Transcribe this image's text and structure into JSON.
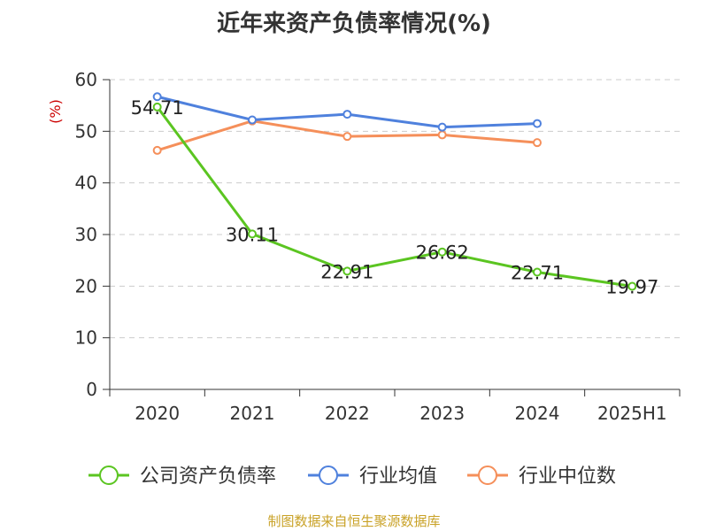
{
  "chart_data": {
    "type": "line",
    "title": "近年来资产负债率情况(%)",
    "ylabel": "(%)",
    "categories": [
      "2020",
      "2021",
      "2022",
      "2023",
      "2024",
      "2025H1"
    ],
    "ylim": [
      0,
      60
    ],
    "yticks": [
      0,
      10,
      20,
      30,
      40,
      50,
      60
    ],
    "grid": true,
    "legend_position": "bottom",
    "series": [
      {
        "name": "公司资产负债率",
        "color": "#5bc521",
        "values": [
          54.71,
          30.11,
          22.91,
          26.62,
          22.71,
          19.97
        ],
        "labels": [
          "54.71",
          "30.11",
          "22.91",
          "26.62",
          "22.71",
          "19.97"
        ]
      },
      {
        "name": "行业均值",
        "color": "#4f81dd",
        "values": [
          56.7,
          52.2,
          53.3,
          50.8,
          51.5,
          null
        ]
      },
      {
        "name": "行业中位数",
        "color": "#f58f5a",
        "values": [
          46.3,
          52.0,
          49.0,
          49.3,
          47.8,
          null
        ]
      }
    ]
  },
  "colors": {
    "ylabel": "#cc0000",
    "watermark": "#c9a227",
    "axis": "#333333",
    "grid": "#cccccc"
  },
  "footer": {
    "source": "制图数据来自恒生聚源数据库"
  }
}
